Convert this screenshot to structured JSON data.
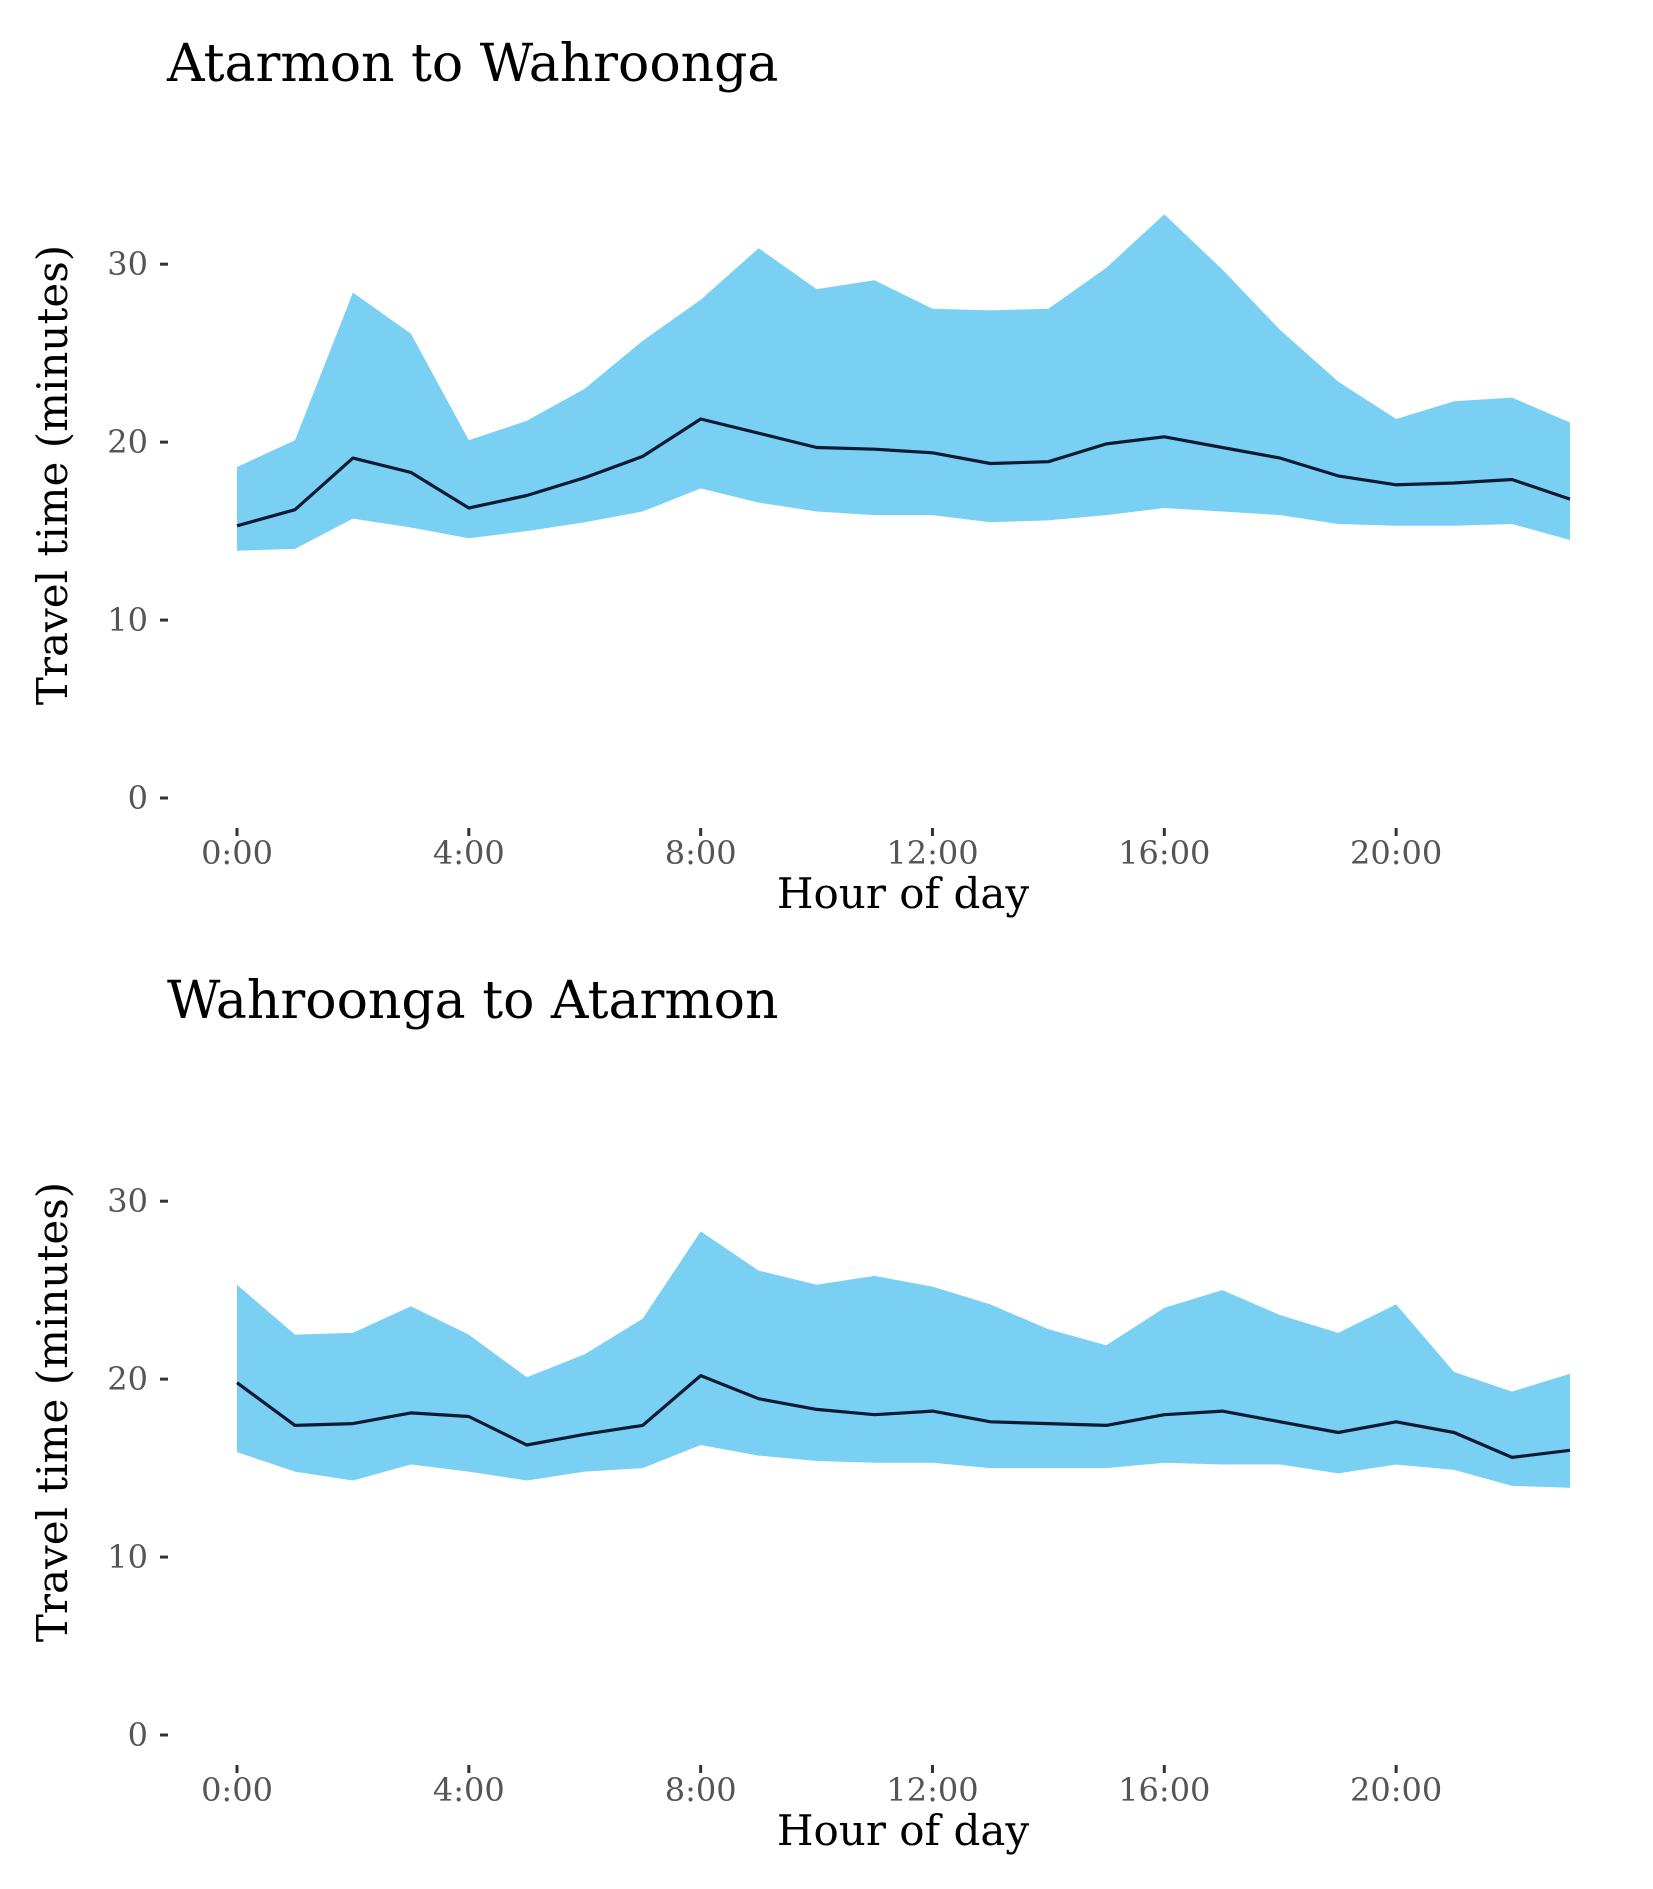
{
  "chart_data": [
    {
      "type": "area",
      "title": "Atarmon to Wahroonga",
      "xlabel": "Hour of day",
      "ylabel": "Travel time (minutes)",
      "xlim": [
        0,
        23
      ],
      "ylim": [
        0,
        34
      ],
      "x_ticks": [
        {
          "value": 0,
          "label": "0:00"
        },
        {
          "value": 4,
          "label": "4:00"
        },
        {
          "value": 8,
          "label": "8:00"
        },
        {
          "value": 12,
          "label": "12:00"
        },
        {
          "value": 16,
          "label": "16:00"
        },
        {
          "value": 20,
          "label": "20:00"
        }
      ],
      "y_ticks": [
        {
          "value": 0,
          "label": "0"
        },
        {
          "value": 10,
          "label": "10"
        },
        {
          "value": 20,
          "label": "20"
        },
        {
          "value": 30,
          "label": "30"
        }
      ],
      "grid": false,
      "band_color": "#79d0f3",
      "line_color": "#0c1a33",
      "x": [
        0,
        1,
        2,
        3,
        4,
        5,
        6,
        7,
        8,
        9,
        10,
        11,
        12,
        13,
        14,
        15,
        16,
        17,
        18,
        19,
        20,
        21,
        22,
        23
      ],
      "series": [
        {
          "role": "band_upper",
          "values": [
            18.6,
            20.1,
            28.4,
            26.1,
            20.1,
            21.2,
            23.0,
            25.7,
            28.0,
            30.9,
            28.6,
            29.1,
            27.5,
            27.4,
            27.5,
            29.8,
            32.8,
            29.7,
            26.3,
            23.4,
            21.3,
            22.3,
            22.5,
            21.1
          ]
        },
        {
          "role": "band_lower",
          "values": [
            13.9,
            14.0,
            15.7,
            15.2,
            14.6,
            15.0,
            15.5,
            16.1,
            17.4,
            16.6,
            16.1,
            15.9,
            15.9,
            15.5,
            15.6,
            15.9,
            16.3,
            16.1,
            15.9,
            15.4,
            15.3,
            15.3,
            15.4,
            14.5
          ]
        },
        {
          "role": "median",
          "values": [
            15.3,
            16.2,
            19.1,
            18.3,
            16.3,
            17.0,
            18.0,
            19.2,
            21.3,
            20.5,
            19.7,
            19.6,
            19.4,
            18.8,
            18.9,
            19.9,
            20.3,
            19.7,
            19.1,
            18.1,
            17.6,
            17.7,
            17.9,
            16.8
          ]
        }
      ]
    },
    {
      "type": "area",
      "title": "Wahroonga to Atarmon",
      "xlabel": "Hour of day",
      "ylabel": "Travel time (minutes)",
      "xlim": [
        0,
        23
      ],
      "ylim": [
        0,
        34
      ],
      "x_ticks": [
        {
          "value": 0,
          "label": "0:00"
        },
        {
          "value": 4,
          "label": "4:00"
        },
        {
          "value": 8,
          "label": "8:00"
        },
        {
          "value": 12,
          "label": "12:00"
        },
        {
          "value": 16,
          "label": "16:00"
        },
        {
          "value": 20,
          "label": "20:00"
        }
      ],
      "y_ticks": [
        {
          "value": 0,
          "label": "0"
        },
        {
          "value": 10,
          "label": "10"
        },
        {
          "value": 20,
          "label": "20"
        },
        {
          "value": 30,
          "label": "30"
        }
      ],
      "grid": false,
      "band_color": "#79d0f3",
      "line_color": "#0c1a33",
      "x": [
        0,
        1,
        2,
        3,
        4,
        5,
        6,
        7,
        8,
        9,
        10,
        11,
        12,
        13,
        14,
        15,
        16,
        17,
        18,
        19,
        20,
        21,
        22,
        23
      ],
      "series": [
        {
          "role": "band_upper",
          "values": [
            25.3,
            22.5,
            22.6,
            24.1,
            22.5,
            20.1,
            21.4,
            23.4,
            28.3,
            26.1,
            25.3,
            25.8,
            25.2,
            24.2,
            22.8,
            21.9,
            24.0,
            25.0,
            23.6,
            22.6,
            24.2,
            20.4,
            19.3,
            20.3
          ]
        },
        {
          "role": "band_lower",
          "values": [
            15.9,
            14.8,
            14.3,
            15.2,
            14.8,
            14.3,
            14.8,
            15.0,
            16.3,
            15.7,
            15.4,
            15.3,
            15.3,
            15.0,
            15.0,
            15.0,
            15.3,
            15.2,
            15.2,
            14.7,
            15.2,
            14.9,
            14.0,
            13.9
          ]
        },
        {
          "role": "median",
          "values": [
            19.8,
            17.4,
            17.5,
            18.1,
            17.9,
            16.3,
            16.9,
            17.4,
            20.2,
            18.9,
            18.3,
            18.0,
            18.2,
            17.6,
            17.5,
            17.4,
            18.0,
            18.2,
            17.6,
            17.0,
            17.6,
            17.0,
            15.6,
            16.0
          ]
        }
      ]
    }
  ]
}
